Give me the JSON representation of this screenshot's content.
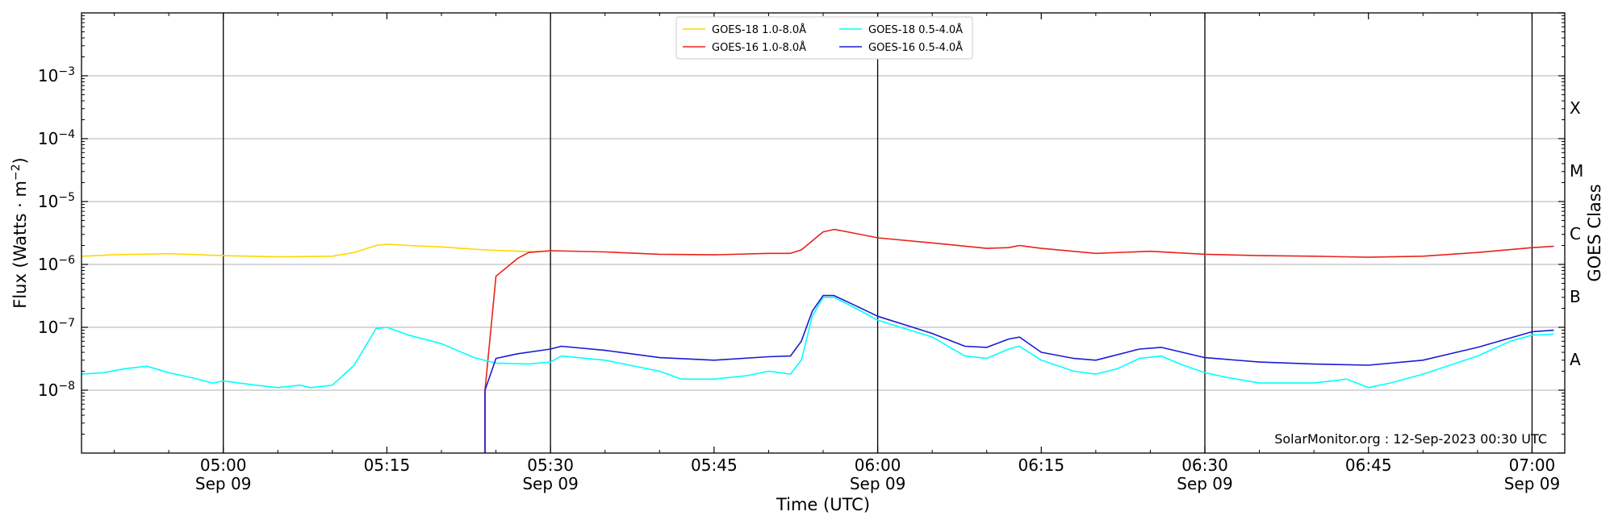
{
  "chart_data": {
    "type": "line",
    "xlabel": "Time (UTC)",
    "ylabel": "Flux (Watts · m",
    "ylabel_sup": "−2",
    "ylabel_close": ")",
    "right_label": "GOES Class",
    "credit": "SolarMonitor.org : 12-Sep-2023 00:30 UTC",
    "y_scale": "log",
    "ylim": [
      1e-09,
      0.01
    ],
    "xlim": [
      "04:47",
      "07:03"
    ],
    "grid": "horizontal",
    "legend_position": "top-center",
    "x_ticks": [
      {
        "time": "05:00",
        "label": "05:00",
        "sub": "Sep 09",
        "major": true
      },
      {
        "time": "05:15",
        "label": "05:15",
        "sub": "",
        "major": false
      },
      {
        "time": "05:30",
        "label": "05:30",
        "sub": "Sep 09",
        "major": true
      },
      {
        "time": "05:45",
        "label": "05:45",
        "sub": "",
        "major": false
      },
      {
        "time": "06:00",
        "label": "06:00",
        "sub": "Sep 09",
        "major": true
      },
      {
        "time": "06:15",
        "label": "06:15",
        "sub": "",
        "major": false
      },
      {
        "time": "06:30",
        "label": "06:30",
        "sub": "Sep 09",
        "major": true
      },
      {
        "time": "06:45",
        "label": "06:45",
        "sub": "",
        "major": false
      },
      {
        "time": "07:00",
        "label": "07:00",
        "sub": "Sep 09",
        "major": true
      }
    ],
    "y_ticks": [
      {
        "value": 1e-08,
        "base": "10",
        "exp": "−8"
      },
      {
        "value": 1e-07,
        "base": "10",
        "exp": "−7"
      },
      {
        "value": 1e-06,
        "base": "10",
        "exp": "−6"
      },
      {
        "value": 1e-05,
        "base": "10",
        "exp": "−5"
      },
      {
        "value": 0.0001,
        "base": "10",
        "exp": "−4"
      },
      {
        "value": 0.001,
        "base": "10",
        "exp": "−3"
      }
    ],
    "classes": [
      {
        "label": "A",
        "value": 3.16e-08
      },
      {
        "label": "B",
        "value": 3.16e-07
      },
      {
        "label": "C",
        "value": 3.16e-06
      },
      {
        "label": "M",
        "value": 3.16e-05
      },
      {
        "label": "X",
        "value": 0.000316
      }
    ],
    "series": [
      {
        "name": "GOES-18 1.0-8.0Å",
        "color": "#ffd700",
        "points": [
          [
            "04:47",
            1.35e-06
          ],
          [
            "04:50",
            1.42e-06
          ],
          [
            "04:55",
            1.48e-06
          ],
          [
            "05:00",
            1.38e-06
          ],
          [
            "05:05",
            1.32e-06
          ],
          [
            "05:10",
            1.35e-06
          ],
          [
            "05:12",
            1.55e-06
          ],
          [
            "05:14",
            2e-06
          ],
          [
            "05:15",
            2.1e-06
          ],
          [
            "05:17",
            2e-06
          ],
          [
            "05:20",
            1.9e-06
          ],
          [
            "05:24",
            1.7e-06
          ],
          [
            "05:28",
            1.6e-06
          ],
          [
            "05:30",
            1.62e-06
          ]
        ]
      },
      {
        "name": "GOES-16 1.0-8.0Å",
        "color": "#e8231a",
        "points": [
          [
            "05:24",
            1e-09
          ],
          [
            "05:24",
            1e-08
          ],
          [
            "05:25",
            6.5e-07
          ],
          [
            "05:27",
            1.25e-06
          ],
          [
            "05:28",
            1.55e-06
          ],
          [
            "05:30",
            1.65e-06
          ],
          [
            "05:35",
            1.58e-06
          ],
          [
            "05:40",
            1.45e-06
          ],
          [
            "05:45",
            1.42e-06
          ],
          [
            "05:50",
            1.5e-06
          ],
          [
            "05:52",
            1.5e-06
          ],
          [
            "05:53",
            1.7e-06
          ],
          [
            "05:55",
            3.3e-06
          ],
          [
            "05:56",
            3.6e-06
          ],
          [
            "05:57",
            3.35e-06
          ],
          [
            "06:00",
            2.65e-06
          ],
          [
            "06:05",
            2.2e-06
          ],
          [
            "06:10",
            1.8e-06
          ],
          [
            "06:12",
            1.85e-06
          ],
          [
            "06:13",
            2e-06
          ],
          [
            "06:15",
            1.8e-06
          ],
          [
            "06:20",
            1.5e-06
          ],
          [
            "06:25",
            1.62e-06
          ],
          [
            "06:30",
            1.45e-06
          ],
          [
            "06:35",
            1.38e-06
          ],
          [
            "06:40",
            1.35e-06
          ],
          [
            "06:45",
            1.3e-06
          ],
          [
            "06:50",
            1.35e-06
          ],
          [
            "06:55",
            1.55e-06
          ],
          [
            "07:00",
            1.85e-06
          ],
          [
            "07:02",
            1.95e-06
          ]
        ]
      },
      {
        "name": "GOES-18 0.5-4.0Å",
        "color": "#00ffff",
        "points": [
          [
            "04:47",
            1.8e-08
          ],
          [
            "04:49",
            1.9e-08
          ],
          [
            "04:51",
            2.2e-08
          ],
          [
            "04:53",
            2.4e-08
          ],
          [
            "04:55",
            1.9e-08
          ],
          [
            "04:57",
            1.6e-08
          ],
          [
            "04:59",
            1.3e-08
          ],
          [
            "05:00",
            1.4e-08
          ],
          [
            "05:03",
            1.2e-08
          ],
          [
            "05:05",
            1.1e-08
          ],
          [
            "05:07",
            1.2e-08
          ],
          [
            "05:08",
            1.1e-08
          ],
          [
            "05:10",
            1.2e-08
          ],
          [
            "05:12",
            2.5e-08
          ],
          [
            "05:14",
            9.5e-08
          ],
          [
            "05:15",
            1e-07
          ],
          [
            "05:17",
            7.5e-08
          ],
          [
            "05:20",
            5.5e-08
          ],
          [
            "05:23",
            3.3e-08
          ],
          [
            "05:25",
            2.7e-08
          ],
          [
            "05:28",
            2.6e-08
          ],
          [
            "05:30",
            2.8e-08
          ],
          [
            "05:31",
            3.5e-08
          ],
          [
            "05:35",
            3e-08
          ],
          [
            "05:40",
            2e-08
          ],
          [
            "05:42",
            1.5e-08
          ],
          [
            "05:45",
            1.5e-08
          ],
          [
            "05:48",
            1.7e-08
          ],
          [
            "05:50",
            2e-08
          ],
          [
            "05:52",
            1.8e-08
          ],
          [
            "05:53",
            3e-08
          ],
          [
            "05:54",
            1.5e-07
          ],
          [
            "05:55",
            3e-07
          ],
          [
            "05:56",
            3e-07
          ],
          [
            "05:58",
            2e-07
          ],
          [
            "06:00",
            1.3e-07
          ],
          [
            "06:05",
            7e-08
          ],
          [
            "06:08",
            3.5e-08
          ],
          [
            "06:10",
            3.2e-08
          ],
          [
            "06:12",
            4.5e-08
          ],
          [
            "06:13",
            5e-08
          ],
          [
            "06:15",
            3e-08
          ],
          [
            "06:18",
            2e-08
          ],
          [
            "06:20",
            1.8e-08
          ],
          [
            "06:22",
            2.2e-08
          ],
          [
            "06:24",
            3.2e-08
          ],
          [
            "06:26",
            3.5e-08
          ],
          [
            "06:28",
            2.5e-08
          ],
          [
            "06:30",
            1.9e-08
          ],
          [
            "06:32",
            1.6e-08
          ],
          [
            "06:35",
            1.3e-08
          ],
          [
            "06:40",
            1.3e-08
          ],
          [
            "06:43",
            1.5e-08
          ],
          [
            "06:45",
            1.1e-08
          ],
          [
            "06:47",
            1.3e-08
          ],
          [
            "06:50",
            1.8e-08
          ],
          [
            "06:55",
            3.5e-08
          ],
          [
            "06:58",
            6e-08
          ],
          [
            "07:00",
            7.5e-08
          ],
          [
            "07:02",
            7.8e-08
          ]
        ]
      },
      {
        "name": "GOES-16 0.5-4.0Å",
        "color": "#1a1ad6",
        "points": [
          [
            "05:24",
            1e-09
          ],
          [
            "05:24",
            1e-08
          ],
          [
            "05:25",
            3.2e-08
          ],
          [
            "05:27",
            3.8e-08
          ],
          [
            "05:30",
            4.5e-08
          ],
          [
            "05:31",
            5e-08
          ],
          [
            "05:35",
            4.3e-08
          ],
          [
            "05:40",
            3.3e-08
          ],
          [
            "05:45",
            3e-08
          ],
          [
            "05:50",
            3.4e-08
          ],
          [
            "05:52",
            3.5e-08
          ],
          [
            "05:53",
            6e-08
          ],
          [
            "05:54",
            1.8e-07
          ],
          [
            "05:55",
            3.2e-07
          ],
          [
            "05:56",
            3.2e-07
          ],
          [
            "05:58",
            2.2e-07
          ],
          [
            "06:00",
            1.5e-07
          ],
          [
            "06:05",
            8e-08
          ],
          [
            "06:08",
            5e-08
          ],
          [
            "06:10",
            4.8e-08
          ],
          [
            "06:12",
            6.5e-08
          ],
          [
            "06:13",
            7e-08
          ],
          [
            "06:15",
            4e-08
          ],
          [
            "06:18",
            3.2e-08
          ],
          [
            "06:20",
            3e-08
          ],
          [
            "06:24",
            4.5e-08
          ],
          [
            "06:26",
            4.8e-08
          ],
          [
            "06:30",
            3.3e-08
          ],
          [
            "06:35",
            2.8e-08
          ],
          [
            "06:40",
            2.6e-08
          ],
          [
            "06:45",
            2.5e-08
          ],
          [
            "06:50",
            3e-08
          ],
          [
            "06:55",
            4.8e-08
          ],
          [
            "07:00",
            8.5e-08
          ],
          [
            "07:02",
            9e-08
          ]
        ]
      }
    ]
  }
}
